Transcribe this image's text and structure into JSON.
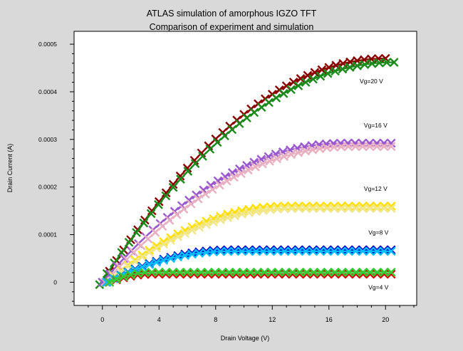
{
  "chart_data": {
    "type": "line",
    "title": "ATLAS simulation of amorphous IGZO TFT",
    "subtitle": "Comparison of experiment and simulation",
    "xlabel": "Drain Voltage (V)",
    "ylabel": "Drain Current (A)",
    "xlim": [
      -2,
      22.2
    ],
    "ylim": [
      -4.87e-05,
      0.000527
    ],
    "xticks": [
      0,
      4,
      8,
      12,
      16,
      20
    ],
    "xtick_labels": [
      "0",
      "4",
      "8",
      "12",
      "16",
      "20"
    ],
    "yticks": [
      0,
      0.0001,
      0.0002,
      0.0003,
      0.0004,
      0.0005
    ],
    "ytick_labels": [
      "0",
      "0.0001",
      "0.0002",
      "0.0003",
      "0.0004",
      "0.0005"
    ],
    "grid": false,
    "marker": "x",
    "x_points": [
      0,
      0.5,
      1,
      1.5,
      2,
      2.5,
      3,
      3.5,
      4,
      4.5,
      5,
      5.5,
      6,
      6.5,
      7,
      7.5,
      8,
      8.5,
      9,
      9.5,
      10,
      10.5,
      11,
      11.5,
      12,
      12.5,
      13,
      13.5,
      14,
      14.5,
      15,
      15.5,
      16,
      16.5,
      17,
      17.5,
      18,
      18.5,
      19,
      19.5,
      20
    ],
    "series": [
      {
        "group": "Vg=20 V",
        "color": "#8b0000",
        "x_start": 0,
        "x_end": 20,
        "y_start": 0,
        "y_sat": 0.00047,
        "x_sat": 20
      },
      {
        "group": "Vg=20 V",
        "color": "#1a8a1a",
        "x_start": -0.2,
        "x_end": 20.6,
        "y_start": -5e-06,
        "y_sat": 0.000462,
        "x_sat": 20.6
      },
      {
        "group": "Vg=16 V",
        "color": "#9b59d0",
        "x_start": 0,
        "x_end": 20.4,
        "y_start": 0,
        "y_sat": 0.000292,
        "x_sat": 17
      },
      {
        "group": "Vg=16 V",
        "color": "#e8b0c0",
        "x_start": 0.2,
        "x_end": 20.4,
        "y_start": 0,
        "y_sat": 0.000285,
        "x_sat": 17.5
      },
      {
        "group": "Vg=12 V",
        "color": "#ffe000",
        "x_start": 0.3,
        "x_end": 20.4,
        "y_start": 0,
        "y_sat": 0.00016,
        "x_sat": 13
      },
      {
        "group": "Vg=12 V",
        "color": "#f0e68c",
        "x_start": 0.3,
        "x_end": 20.4,
        "y_start": 0,
        "y_sat": 0.000155,
        "x_sat": 13.5
      },
      {
        "group": "Vg=8 V",
        "color": "#0000cc",
        "x_start": 0.3,
        "x_end": 20.4,
        "y_start": 0,
        "y_sat": 6.8e-05,
        "x_sat": 9
      },
      {
        "group": "Vg=8 V",
        "color": "#00bfff",
        "x_start": 0.3,
        "x_end": 20.4,
        "y_start": 0,
        "y_sat": 6.5e-05,
        "x_sat": 9
      },
      {
        "group": "Vg=4 V",
        "color": "#dd0000",
        "x_start": 0.5,
        "x_end": 20.4,
        "y_start": 0,
        "y_sat": 1.7e-05,
        "x_sat": 3.5
      },
      {
        "group": "Vg=4 V",
        "color": "#33cc33",
        "x_start": 0.5,
        "x_end": 20.4,
        "y_start": 0,
        "y_sat": 2.1e-05,
        "x_sat": 3.5
      }
    ],
    "annotations": [
      {
        "text": "Vg=20 V",
        "x": 19.0,
        "y": 0.000418
      },
      {
        "text": "Vg=16 V",
        "x": 19.3,
        "y": 0.000325
      },
      {
        "text": "Vg=12 V",
        "x": 19.3,
        "y": 0.000192
      },
      {
        "text": "Vg=8 V",
        "x": 19.5,
        "y": 0.0001
      },
      {
        "text": "Vg=4 V",
        "x": 19.5,
        "y": -1.5e-05
      }
    ]
  }
}
